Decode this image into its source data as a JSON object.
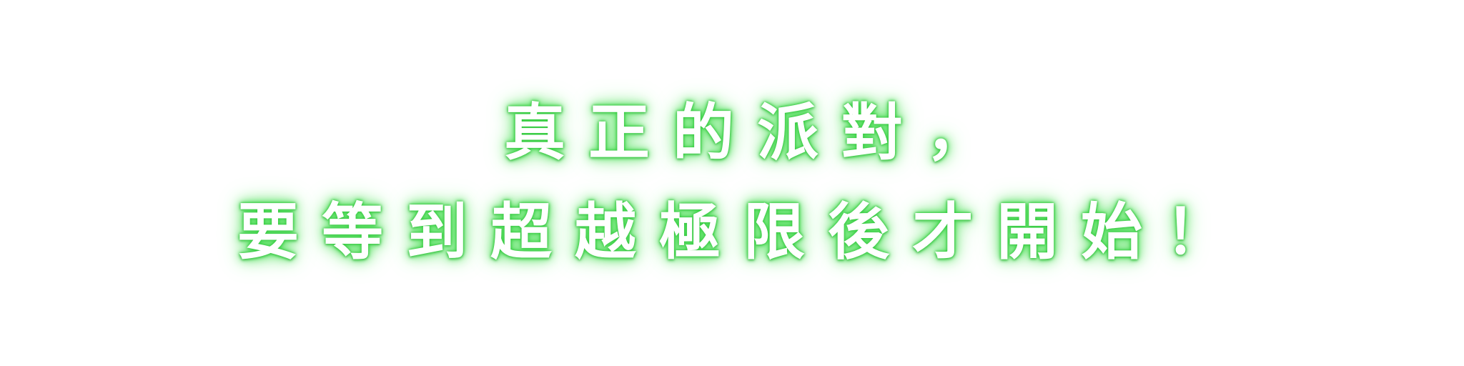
{
  "headline": {
    "line1": "真正的派對，",
    "line2": "要等到超越極限後才開始！"
  },
  "colors": {
    "background": "#ffffff",
    "text": "#ffffff",
    "glow": "#55e05e"
  }
}
